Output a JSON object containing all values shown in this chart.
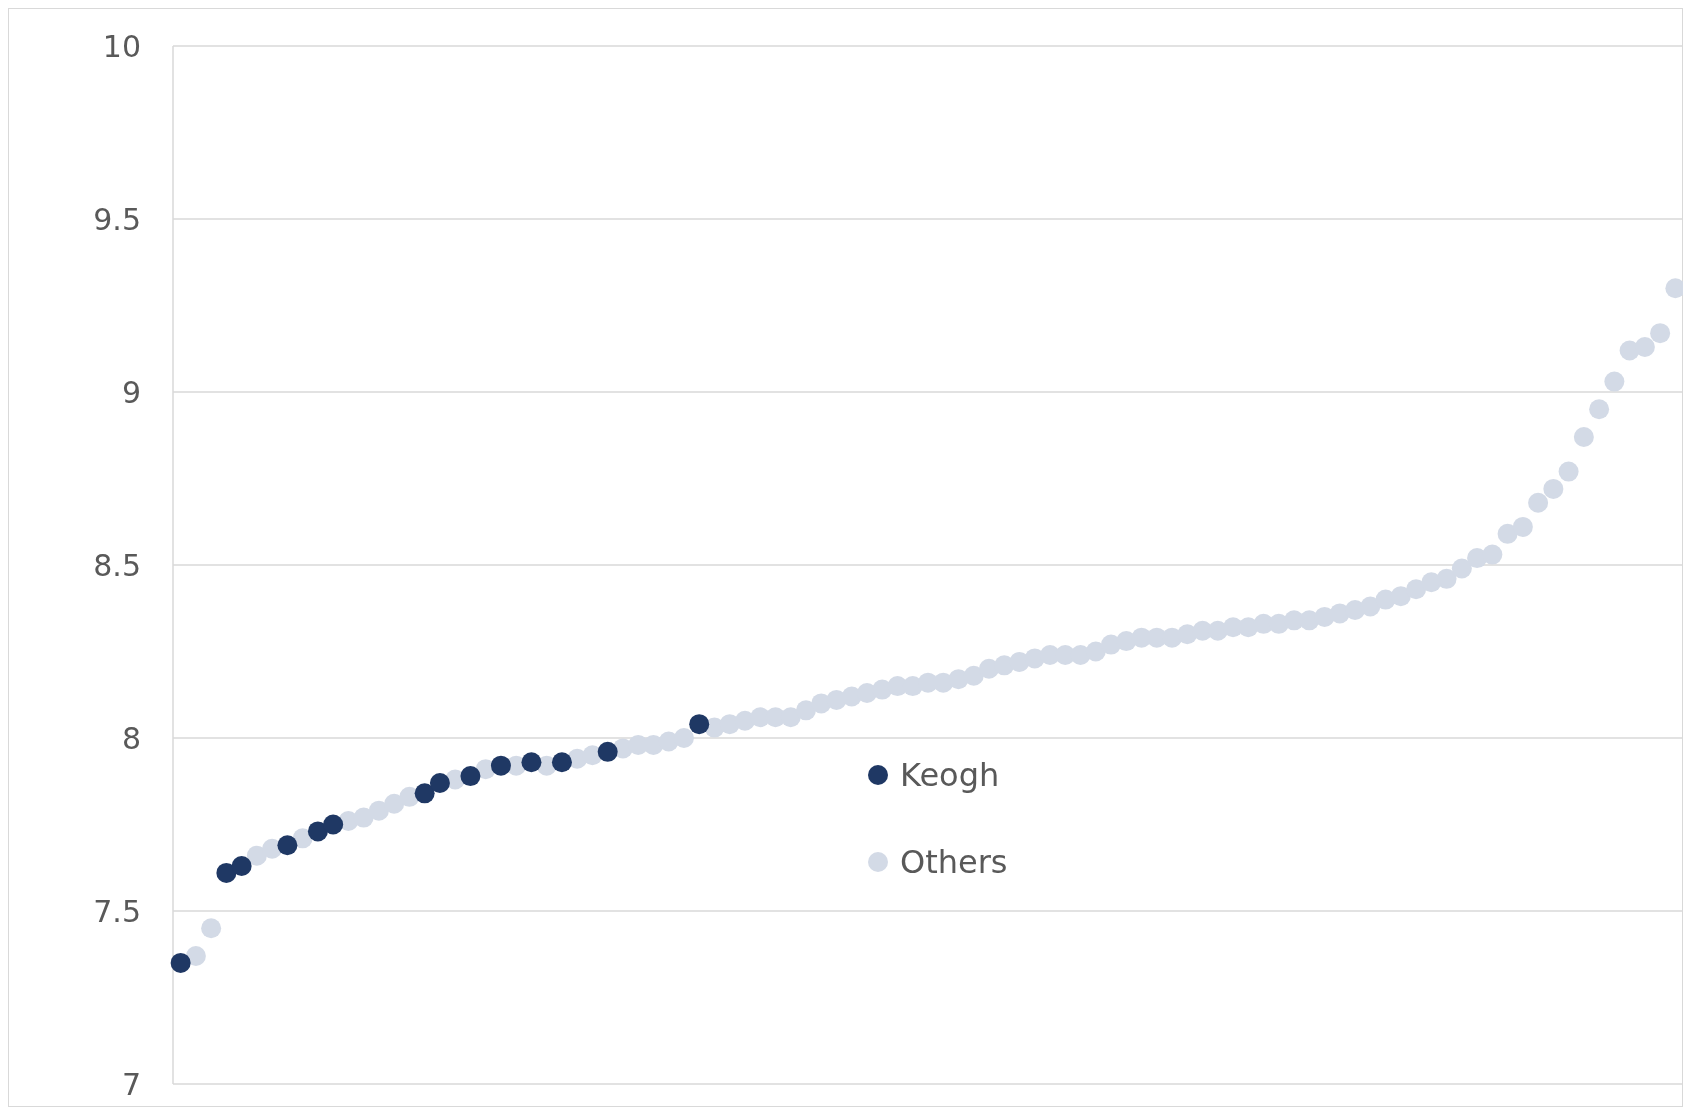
{
  "chart_data": {
    "type": "scatter",
    "categories": [
      null,
      null,
      null,
      null,
      null,
      null,
      null,
      null,
      null,
      null,
      null,
      null,
      null,
      null,
      null,
      null,
      null,
      null,
      null,
      null,
      null,
      null,
      null,
      null,
      null,
      null,
      null,
      null,
      null,
      null,
      null,
      null,
      null,
      null,
      null,
      null,
      null,
      null,
      null,
      null,
      null,
      null,
      null,
      null,
      null,
      null,
      null,
      null,
      null,
      null,
      null,
      null,
      null,
      null,
      null,
      null,
      null,
      null,
      null,
      null,
      null,
      null,
      null,
      null,
      null,
      null,
      null,
      null,
      null,
      null,
      null,
      null,
      null,
      null,
      null,
      null,
      null,
      null,
      null,
      null,
      null,
      null,
      null,
      null,
      null,
      null,
      null,
      null,
      null,
      null,
      null,
      null,
      null,
      null,
      null,
      null,
      null,
      null,
      null
    ],
    "series": [
      {
        "name": "Keogh",
        "color": "#1f3864",
        "values": [
          7.35,
          null,
          null,
          7.61,
          7.63,
          null,
          null,
          7.69,
          null,
          7.73,
          7.75,
          null,
          null,
          null,
          null,
          null,
          7.84,
          7.87,
          null,
          7.89,
          null,
          7.92,
          null,
          7.93,
          null,
          7.93,
          null,
          null,
          7.96,
          null,
          null,
          null,
          null,
          null,
          8.04,
          null,
          null,
          null,
          null,
          null,
          null,
          null,
          null,
          null,
          null,
          null,
          null,
          null,
          null,
          null,
          null,
          null,
          null,
          null,
          null,
          null,
          null,
          null,
          null,
          null,
          null,
          null,
          null,
          null,
          null,
          null,
          null,
          null,
          null,
          null,
          null,
          null,
          null,
          null,
          null,
          null,
          null,
          null,
          null,
          null,
          null,
          null,
          null,
          null,
          null,
          null,
          null,
          null,
          null,
          null,
          null,
          null,
          null,
          null,
          null,
          null,
          null,
          null,
          null
        ]
      },
      {
        "name": "Others",
        "color": "#d3dae6",
        "values": [
          null,
          7.37,
          7.45,
          null,
          null,
          7.66,
          7.68,
          null,
          7.71,
          null,
          null,
          7.76,
          7.77,
          7.79,
          7.81,
          7.83,
          null,
          null,
          7.88,
          null,
          7.91,
          null,
          7.92,
          null,
          7.92,
          null,
          7.94,
          7.95,
          null,
          7.97,
          7.98,
          7.98,
          7.99,
          8.0,
          null,
          8.03,
          8.04,
          8.05,
          8.06,
          8.06,
          8.06,
          8.08,
          8.1,
          8.11,
          8.12,
          8.13,
          8.14,
          8.15,
          8.15,
          8.16,
          8.16,
          8.17,
          8.18,
          8.2,
          8.21,
          8.22,
          8.23,
          8.24,
          8.24,
          8.24,
          8.25,
          8.27,
          8.28,
          8.29,
          8.29,
          8.29,
          8.3,
          8.31,
          8.31,
          8.32,
          8.32,
          8.33,
          8.33,
          8.34,
          8.34,
          8.35,
          8.36,
          8.37,
          8.38,
          8.4,
          8.41,
          8.43,
          8.45,
          8.46,
          8.49,
          8.52,
          8.53,
          8.59,
          8.61,
          8.68,
          8.72,
          8.77,
          8.87,
          8.95,
          9.03,
          9.12,
          9.13,
          9.17,
          9.3
        ]
      }
    ],
    "ylim": [
      7,
      10
    ],
    "yticks": [
      7,
      7.5,
      8,
      8.5,
      9,
      9.5,
      10
    ],
    "grid": "y",
    "legend": "center",
    "marker": "circle",
    "tick_labels": "y"
  }
}
